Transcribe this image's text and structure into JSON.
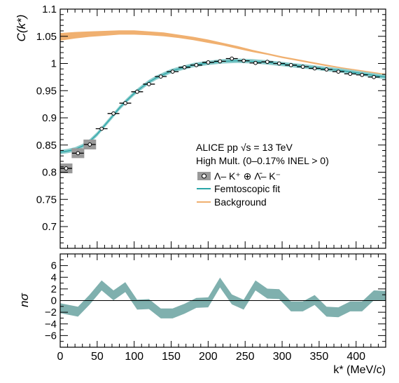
{
  "chart_data": [
    {
      "type": "scatter",
      "ylabel": "C(k*)",
      "xlim": [
        0,
        440
      ],
      "ylim": [
        0.66,
        1.1
      ],
      "yticks": [
        "0.7",
        "0.75",
        "0.8",
        "0.85",
        "0.9",
        "0.95",
        "1",
        "1.05",
        "1.1"
      ],
      "legend": {
        "placement": "center-right",
        "header1": "ALICE pp √s = 13 TeV",
        "header2": "High Mult. (0–0.17% INEL > 0)",
        "entries": [
          {
            "label": "Λ– K⁺ ⊕ Λ̄– K⁻",
            "kind": "data",
            "color": "#000000"
          },
          {
            "label": "Femtoscopic fit",
            "kind": "line",
            "color": "#2aa6a8"
          },
          {
            "label": "Background",
            "kind": "line",
            "color": "#f0b070"
          }
        ]
      },
      "series": [
        {
          "name": "Λ– K⁺ ⊕ Λ̄– K⁻",
          "x": [
            8,
            24,
            40,
            56,
            72,
            88,
            104,
            120,
            136,
            152,
            168,
            184,
            200,
            216,
            232,
            248,
            264,
            280,
            296,
            312,
            328,
            344,
            360,
            376,
            392,
            408,
            424
          ],
          "y": [
            0.807,
            0.835,
            0.851,
            0.88,
            0.908,
            0.927,
            0.948,
            0.962,
            0.976,
            0.985,
            0.993,
            0.997,
            1.002,
            1.004,
            1.009,
            1.005,
            1.001,
            1.003,
            1.0,
            0.997,
            0.994,
            0.991,
            0.989,
            0.985,
            0.981,
            0.979,
            0.975
          ],
          "xerr": 8,
          "syst_box": [
            true,
            true,
            true,
            false,
            false,
            false,
            false,
            false,
            false,
            false,
            false,
            false,
            false,
            false,
            false,
            false,
            false,
            false,
            false,
            false,
            false,
            false,
            false,
            false,
            false,
            false,
            false
          ]
        },
        {
          "name": "Femtoscopic fit",
          "type": "line",
          "x": [
            0,
            10,
            20,
            30,
            40,
            50,
            60,
            70,
            80,
            90,
            100,
            110,
            120,
            130,
            140,
            150,
            160,
            180,
            200,
            220,
            240,
            260,
            280,
            300,
            320,
            340,
            360,
            380,
            400,
            420,
            440
          ],
          "y": [
            0.837,
            0.839,
            0.842,
            0.848,
            0.857,
            0.87,
            0.886,
            0.902,
            0.918,
            0.932,
            0.945,
            0.956,
            0.966,
            0.974,
            0.98,
            0.986,
            0.99,
            0.997,
            1.001,
            1.004,
            1.005,
            1.004,
            1.002,
            0.999,
            0.996,
            0.993,
            0.99,
            0.987,
            0.983,
            0.979,
            0.975
          ],
          "band_halfwidth": 0.004
        },
        {
          "name": "Background",
          "type": "band",
          "x": [
            0,
            20,
            40,
            60,
            80,
            100,
            120,
            140,
            160,
            180,
            200,
            220,
            240,
            260,
            280,
            300,
            320,
            340,
            360,
            380,
            400,
            420,
            440
          ],
          "y_low": [
            1.042,
            1.046,
            1.049,
            1.051,
            1.053,
            1.053,
            1.052,
            1.05,
            1.047,
            1.043,
            1.038,
            1.033,
            1.027,
            1.021,
            1.016,
            1.01,
            1.005,
            1.0,
            0.995,
            0.991,
            0.987,
            0.983,
            0.979
          ],
          "y_high": [
            1.056,
            1.058,
            1.059,
            1.06,
            1.061,
            1.061,
            1.059,
            1.057,
            1.053,
            1.049,
            1.044,
            1.038,
            1.032,
            1.025,
            1.019,
            1.013,
            1.008,
            1.003,
            0.998,
            0.993,
            0.989,
            0.985,
            0.981
          ]
        }
      ]
    },
    {
      "type": "area",
      "xlabel": "k* (MeV/c)",
      "ylabel": "nσ",
      "xlim": [
        0,
        440
      ],
      "ylim": [
        -8,
        8
      ],
      "xticks": [
        "0",
        "50",
        "100",
        "150",
        "200",
        "250",
        "300",
        "350",
        "400"
      ],
      "yticks": [
        "−6",
        "−4",
        "−2",
        "0",
        "2",
        "4",
        "6"
      ],
      "series": [
        {
          "name": "nσ",
          "x": [
            0,
            24,
            40,
            56,
            72,
            88,
            104,
            120,
            136,
            152,
            168,
            184,
            200,
            216,
            232,
            248,
            264,
            280,
            296,
            312,
            328,
            344,
            360,
            376,
            392,
            408,
            424,
            440
          ],
          "y": [
            -1.3,
            -1.9,
            0.2,
            2.6,
            0.9,
            2.3,
            -0.7,
            -0.6,
            -2.2,
            -2.2,
            -1.4,
            -0.4,
            -0.3,
            3.1,
            0.2,
            -0.7,
            2.6,
            1.2,
            1.1,
            -1.0,
            -1.0,
            0.1,
            -1.9,
            -2.0,
            -1.0,
            -1.0,
            0.9,
            0.8
          ],
          "halfwidth": 0.85
        }
      ]
    }
  ],
  "colors": {
    "fit": "#2aa6a8",
    "background": "#f0b070",
    "residual": "#7fb0ae",
    "syst": "#9a9a9a"
  }
}
